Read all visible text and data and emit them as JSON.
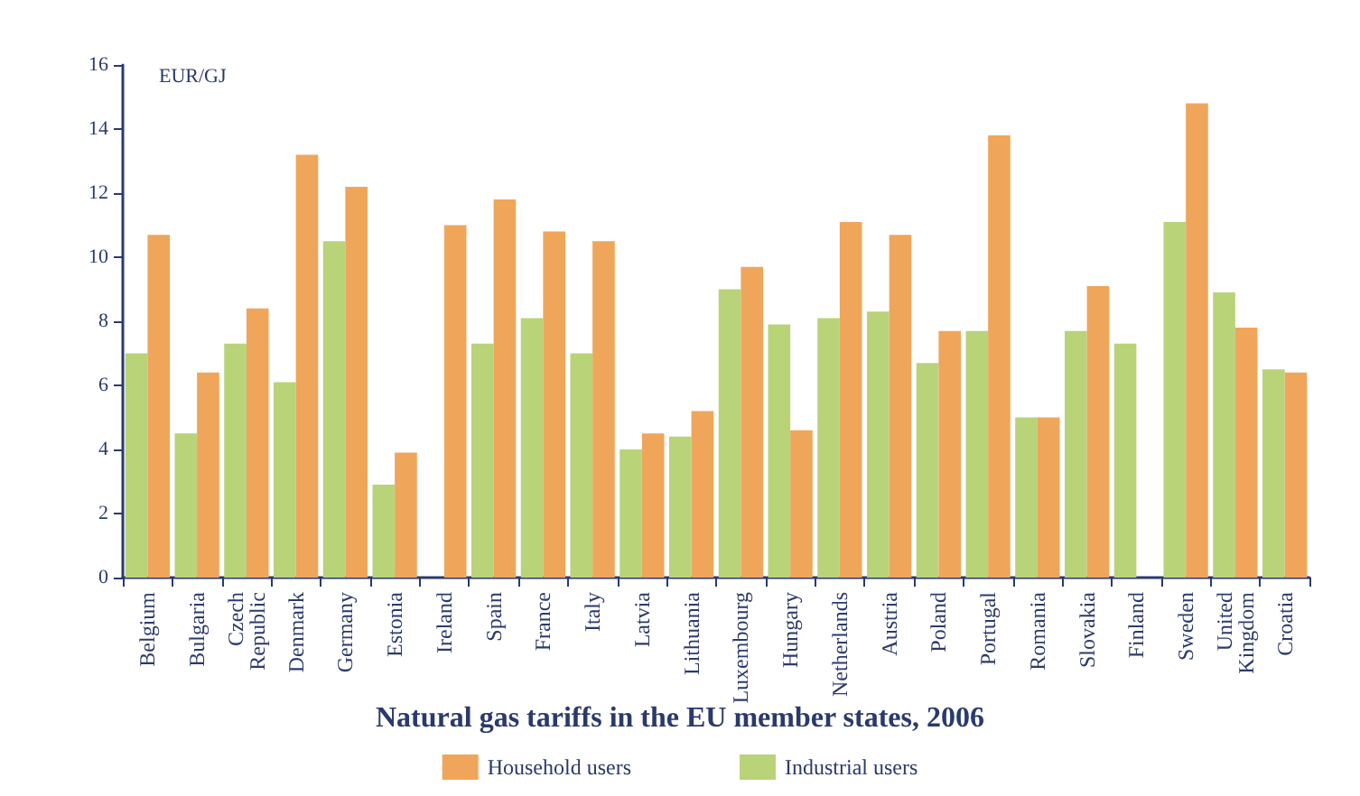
{
  "chart_data": {
    "type": "bar",
    "title": "Natural gas tariffs in the EU member states, 2006",
    "ylabel": "EUR/GJ",
    "categories": [
      "Belgium",
      "Bulgaria",
      "Czech Republic",
      "Denmark",
      "Germany",
      "Estonia",
      "Ireland",
      "Spain",
      "France",
      "Italy",
      "Latvia",
      "Lithuania",
      "Luxembourg",
      "Hungary",
      "Netherlands",
      "Austria",
      "Poland",
      "Portugal",
      "Romania",
      "Slovakia",
      "Finland",
      "Sweden",
      "United Kingdom",
      "Croatia"
    ],
    "series": [
      {
        "name": "Industrial users",
        "color": "#b9d379",
        "values": [
          7.0,
          4.5,
          7.3,
          6.1,
          10.5,
          2.9,
          null,
          7.3,
          8.1,
          7.0,
          4.0,
          4.4,
          9.0,
          7.9,
          8.1,
          8.3,
          6.7,
          7.7,
          5.0,
          7.7,
          7.3,
          11.1,
          8.9,
          6.5
        ]
      },
      {
        "name": "Household users",
        "color": "#efa65a",
        "values": [
          10.7,
          6.4,
          8.4,
          13.2,
          12.2,
          3.9,
          11.0,
          11.8,
          10.8,
          10.5,
          4.5,
          5.2,
          9.7,
          4.6,
          11.1,
          10.7,
          7.7,
          13.8,
          5.0,
          9.1,
          null,
          14.8,
          7.8,
          6.4
        ]
      }
    ],
    "ylim": [
      0,
      16
    ],
    "yticks": [
      0,
      2,
      4,
      6,
      8,
      10,
      12,
      14,
      16
    ],
    "grid": false,
    "legend": "bottom"
  }
}
